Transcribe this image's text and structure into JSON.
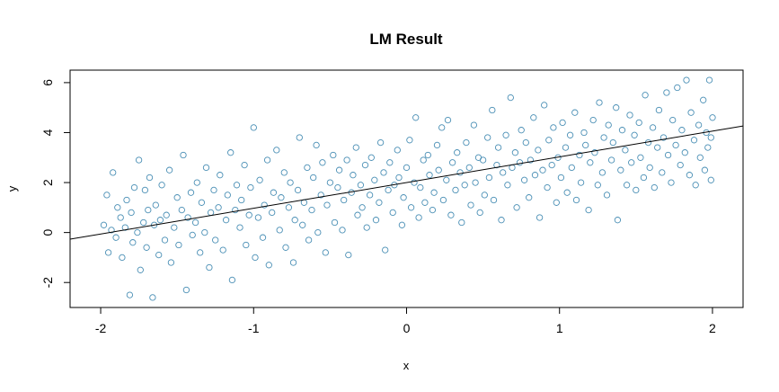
{
  "chart_data": {
    "type": "scatter",
    "title": "LM Result",
    "xlabel": "x",
    "ylabel": "y",
    "xlim": [
      -2.2,
      2.2
    ],
    "ylim": [
      -3.0,
      6.5
    ],
    "x_ticks": [
      -2,
      -1,
      0,
      1,
      2
    ],
    "x_tick_labels": [
      "-2",
      "-1",
      "0",
      "1",
      "2"
    ],
    "y_ticks": [
      -2,
      0,
      2,
      4,
      6
    ],
    "y_tick_labels": [
      "-2",
      "0",
      "2",
      "4",
      "6"
    ],
    "grid": false,
    "point_color": "#4a8fb5",
    "line_color": "#000000",
    "regression_line": {
      "intercept": 2.0,
      "slope": 1.03
    },
    "series": [
      {
        "points": [
          [
            -1.98,
            0.3
          ],
          [
            -1.96,
            1.5
          ],
          [
            -1.95,
            -0.8
          ],
          [
            -1.93,
            0.1
          ],
          [
            -1.92,
            2.4
          ],
          [
            -1.9,
            -0.2
          ],
          [
            -1.89,
            1.0
          ],
          [
            -1.87,
            0.6
          ],
          [
            -1.86,
            -1.0
          ],
          [
            -1.84,
            0.2
          ],
          [
            -1.83,
            1.3
          ],
          [
            -1.81,
            -2.5
          ],
          [
            -1.8,
            0.8
          ],
          [
            -1.79,
            -0.4
          ],
          [
            -1.78,
            1.8
          ],
          [
            -1.76,
            0.0
          ],
          [
            -1.75,
            2.9
          ],
          [
            -1.74,
            -1.5
          ],
          [
            -1.72,
            0.4
          ],
          [
            -1.71,
            1.7
          ],
          [
            -1.7,
            -0.6
          ],
          [
            -1.69,
            0.9
          ],
          [
            -1.68,
            2.2
          ],
          [
            -1.66,
            -2.6
          ],
          [
            -1.65,
            0.3
          ],
          [
            -1.64,
            1.1
          ],
          [
            -1.62,
            -0.9
          ],
          [
            -1.61,
            0.5
          ],
          [
            -1.6,
            1.9
          ],
          [
            -1.58,
            -0.3
          ],
          [
            -1.57,
            0.7
          ],
          [
            -1.55,
            2.5
          ],
          [
            -1.54,
            -1.2
          ],
          [
            -1.52,
            0.2
          ],
          [
            -1.5,
            1.4
          ],
          [
            -1.49,
            -0.5
          ],
          [
            -1.47,
            0.9
          ],
          [
            -1.46,
            3.1
          ],
          [
            -1.44,
            -2.3
          ],
          [
            -1.43,
            0.6
          ],
          [
            -1.41,
            1.6
          ],
          [
            -1.4,
            -0.1
          ],
          [
            -1.38,
            0.4
          ],
          [
            -1.37,
            2.0
          ],
          [
            -1.35,
            -0.8
          ],
          [
            -1.34,
            1.2
          ],
          [
            -1.32,
            0.0
          ],
          [
            -1.31,
            2.6
          ],
          [
            -1.29,
            -1.4
          ],
          [
            -1.28,
            0.8
          ],
          [
            -1.26,
            1.7
          ],
          [
            -1.25,
            -0.3
          ],
          [
            -1.23,
            1.0
          ],
          [
            -1.22,
            2.3
          ],
          [
            -1.2,
            -0.7
          ],
          [
            -1.18,
            0.5
          ],
          [
            -1.17,
            1.5
          ],
          [
            -1.15,
            3.2
          ],
          [
            -1.14,
            -1.9
          ],
          [
            -1.12,
            0.9
          ],
          [
            -1.11,
            1.9
          ],
          [
            -1.09,
            0.2
          ],
          [
            -1.08,
            1.3
          ],
          [
            -1.06,
            2.7
          ],
          [
            -1.05,
            -0.5
          ],
          [
            -1.03,
            0.7
          ],
          [
            -1.02,
            1.8
          ],
          [
            -1.0,
            4.2
          ],
          [
            -0.99,
            -1.0
          ],
          [
            -0.97,
            0.6
          ],
          [
            -0.96,
            2.1
          ],
          [
            -0.94,
            -0.2
          ],
          [
            -0.93,
            1.1
          ],
          [
            -0.91,
            2.9
          ],
          [
            -0.9,
            -1.3
          ],
          [
            -0.88,
            0.8
          ],
          [
            -0.87,
            1.6
          ],
          [
            -0.85,
            3.3
          ],
          [
            -0.83,
            0.1
          ],
          [
            -0.82,
            1.4
          ],
          [
            -0.8,
            2.4
          ],
          [
            -0.79,
            -0.6
          ],
          [
            -0.77,
            1.0
          ],
          [
            -0.76,
            2.0
          ],
          [
            -0.74,
            -1.2
          ],
          [
            -0.73,
            0.5
          ],
          [
            -0.71,
            1.7
          ],
          [
            -0.7,
            3.8
          ],
          [
            -0.68,
            0.3
          ],
          [
            -0.67,
            1.2
          ],
          [
            -0.65,
            2.6
          ],
          [
            -0.64,
            -0.3
          ],
          [
            -0.62,
            0.9
          ],
          [
            -0.61,
            2.2
          ],
          [
            -0.59,
            3.5
          ],
          [
            -0.58,
            0.0
          ],
          [
            -0.56,
            1.5
          ],
          [
            -0.55,
            2.8
          ],
          [
            -0.53,
            -0.8
          ],
          [
            -0.52,
            1.1
          ],
          [
            -0.5,
            2.0
          ],
          [
            -0.48,
            3.1
          ],
          [
            -0.47,
            0.4
          ],
          [
            -0.45,
            1.8
          ],
          [
            -0.44,
            2.5
          ],
          [
            -0.42,
            0.1
          ],
          [
            -0.41,
            1.3
          ],
          [
            -0.39,
            2.9
          ],
          [
            -0.38,
            -0.9
          ],
          [
            -0.36,
            1.6
          ],
          [
            -0.35,
            2.3
          ],
          [
            -0.33,
            3.4
          ],
          [
            -0.32,
            0.7
          ],
          [
            -0.3,
            1.9
          ],
          [
            -0.29,
            1.0
          ],
          [
            -0.27,
            2.7
          ],
          [
            -0.26,
            0.2
          ],
          [
            -0.24,
            1.5
          ],
          [
            -0.23,
            3.0
          ],
          [
            -0.21,
            2.1
          ],
          [
            -0.2,
            0.5
          ],
          [
            -0.18,
            1.2
          ],
          [
            -0.17,
            3.6
          ],
          [
            -0.15,
            2.4
          ],
          [
            -0.14,
            -0.7
          ],
          [
            -0.12,
            1.7
          ],
          [
            -0.11,
            2.8
          ],
          [
            -0.09,
            0.8
          ],
          [
            -0.08,
            1.9
          ],
          [
            -0.06,
            3.3
          ],
          [
            -0.05,
            2.2
          ],
          [
            -0.03,
            0.3
          ],
          [
            -0.02,
            1.4
          ],
          [
            0.0,
            2.6
          ],
          [
            0.02,
            3.7
          ],
          [
            0.03,
            1.0
          ],
          [
            0.05,
            2.0
          ],
          [
            0.06,
            4.6
          ],
          [
            0.08,
            0.6
          ],
          [
            0.09,
            1.8
          ],
          [
            0.11,
            2.9
          ],
          [
            0.12,
            1.2
          ],
          [
            0.14,
            3.1
          ],
          [
            0.15,
            2.3
          ],
          [
            0.17,
            0.9
          ],
          [
            0.18,
            1.6
          ],
          [
            0.2,
            3.5
          ],
          [
            0.21,
            2.5
          ],
          [
            0.23,
            4.2
          ],
          [
            0.24,
            1.3
          ],
          [
            0.26,
            2.1
          ],
          [
            0.27,
            4.5
          ],
          [
            0.29,
            0.7
          ],
          [
            0.3,
            2.8
          ],
          [
            0.32,
            1.7
          ],
          [
            0.33,
            3.2
          ],
          [
            0.35,
            2.4
          ],
          [
            0.36,
            0.4
          ],
          [
            0.38,
            1.9
          ],
          [
            0.39,
            3.6
          ],
          [
            0.41,
            2.6
          ],
          [
            0.42,
            1.1
          ],
          [
            0.44,
            4.3
          ],
          [
            0.45,
            2.0
          ],
          [
            0.47,
            3.0
          ],
          [
            0.48,
            0.8
          ],
          [
            0.5,
            2.9
          ],
          [
            0.51,
            1.5
          ],
          [
            0.53,
            3.8
          ],
          [
            0.54,
            2.2
          ],
          [
            0.56,
            4.9
          ],
          [
            0.57,
            1.3
          ],
          [
            0.59,
            2.7
          ],
          [
            0.6,
            3.4
          ],
          [
            0.62,
            0.5
          ],
          [
            0.63,
            2.4
          ],
          [
            0.65,
            3.9
          ],
          [
            0.66,
            1.9
          ],
          [
            0.68,
            5.4
          ],
          [
            0.69,
            2.6
          ],
          [
            0.71,
            3.2
          ],
          [
            0.72,
            1.0
          ],
          [
            0.74,
            2.8
          ],
          [
            0.75,
            4.1
          ],
          [
            0.77,
            2.1
          ],
          [
            0.78,
            3.6
          ],
          [
            0.8,
            1.4
          ],
          [
            0.81,
            2.9
          ],
          [
            0.83,
            4.6
          ],
          [
            0.84,
            2.3
          ],
          [
            0.86,
            3.3
          ],
          [
            0.87,
            0.6
          ],
          [
            0.89,
            2.5
          ],
          [
            0.9,
            5.1
          ],
          [
            0.92,
            1.8
          ],
          [
            0.93,
            3.7
          ],
          [
            0.95,
            2.7
          ],
          [
            0.96,
            4.2
          ],
          [
            0.98,
            1.2
          ],
          [
            0.99,
            3.0
          ],
          [
            1.01,
            2.2
          ],
          [
            1.02,
            4.4
          ],
          [
            1.04,
            3.4
          ],
          [
            1.05,
            1.6
          ],
          [
            1.07,
            3.9
          ],
          [
            1.08,
            2.6
          ],
          [
            1.1,
            4.8
          ],
          [
            1.11,
            1.3
          ],
          [
            1.13,
            3.1
          ],
          [
            1.14,
            2.0
          ],
          [
            1.16,
            4.0
          ],
          [
            1.17,
            3.5
          ],
          [
            1.19,
            0.9
          ],
          [
            1.2,
            2.8
          ],
          [
            1.22,
            4.5
          ],
          [
            1.23,
            3.2
          ],
          [
            1.25,
            1.9
          ],
          [
            1.26,
            5.2
          ],
          [
            1.28,
            2.4
          ],
          [
            1.29,
            3.8
          ],
          [
            1.31,
            1.5
          ],
          [
            1.32,
            4.3
          ],
          [
            1.34,
            2.9
          ],
          [
            1.35,
            3.6
          ],
          [
            1.37,
            5.0
          ],
          [
            1.38,
            0.5
          ],
          [
            1.4,
            2.5
          ],
          [
            1.41,
            4.1
          ],
          [
            1.43,
            3.3
          ],
          [
            1.44,
            1.9
          ],
          [
            1.46,
            4.7
          ],
          [
            1.47,
            2.8
          ],
          [
            1.49,
            3.9
          ],
          [
            1.5,
            1.7
          ],
          [
            1.52,
            4.4
          ],
          [
            1.53,
            3.0
          ],
          [
            1.55,
            2.2
          ],
          [
            1.56,
            5.5
          ],
          [
            1.58,
            3.6
          ],
          [
            1.59,
            2.6
          ],
          [
            1.61,
            4.2
          ],
          [
            1.62,
            1.8
          ],
          [
            1.64,
            3.4
          ],
          [
            1.65,
            4.9
          ],
          [
            1.67,
            2.4
          ],
          [
            1.68,
            3.8
          ],
          [
            1.7,
            5.6
          ],
          [
            1.71,
            3.1
          ],
          [
            1.73,
            2.0
          ],
          [
            1.74,
            4.5
          ],
          [
            1.76,
            3.5
          ],
          [
            1.77,
            5.8
          ],
          [
            1.79,
            2.7
          ],
          [
            1.8,
            4.1
          ],
          [
            1.82,
            3.2
          ],
          [
            1.83,
            6.1
          ],
          [
            1.85,
            2.3
          ],
          [
            1.86,
            4.8
          ],
          [
            1.88,
            3.7
          ],
          [
            1.89,
            1.9
          ],
          [
            1.91,
            4.3
          ],
          [
            1.92,
            3.0
          ],
          [
            1.94,
            5.3
          ],
          [
            1.95,
            2.5
          ],
          [
            1.96,
            4.0
          ],
          [
            1.97,
            3.4
          ],
          [
            1.98,
            6.1
          ],
          [
            1.99,
            2.1
          ],
          [
            2.0,
            4.6
          ],
          [
            1.99,
            3.8
          ]
        ]
      }
    ]
  }
}
